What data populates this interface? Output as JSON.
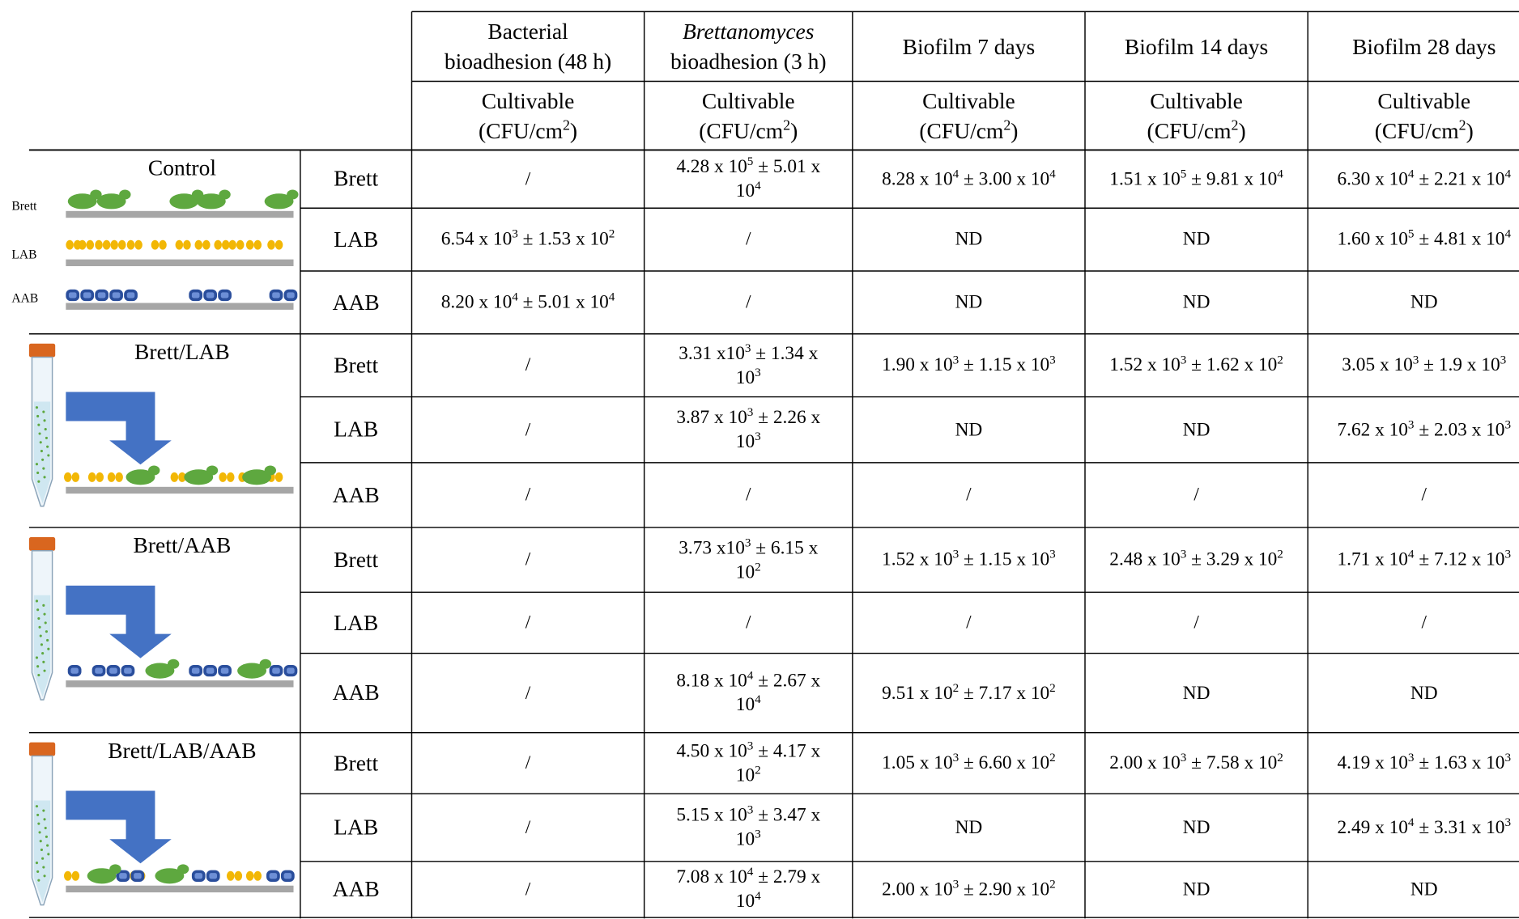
{
  "header": {
    "columns": [
      {
        "lines": [
          [
            "Bacterial"
          ],
          [
            "bioadhesion (48 h)"
          ]
        ]
      },
      {
        "lines": [
          [
            {
              "i": "Brettanomyces"
            }
          ],
          [
            "bioadhesion (3 h)"
          ]
        ]
      },
      {
        "lines": [
          [
            "Biofilm 7 days"
          ]
        ]
      },
      {
        "lines": [
          [
            "Biofilm 14 days"
          ]
        ]
      },
      {
        "lines": [
          [
            "Biofilm 28 days"
          ]
        ]
      }
    ],
    "sub": [
      {
        "lines": [
          [
            "Cultivable"
          ],
          [
            "(CFU/cm",
            {
              "sup": "2"
            },
            ")"
          ]
        ]
      },
      {
        "lines": [
          [
            "Cultivable"
          ],
          [
            "(CFU/cm",
            {
              "sup": "2"
            },
            ")"
          ]
        ]
      },
      {
        "lines": [
          [
            "Cultivable"
          ],
          [
            "(CFU/cm",
            {
              "sup": "2"
            },
            ")"
          ]
        ]
      },
      {
        "lines": [
          [
            "Cultivable"
          ],
          [
            "(CFU/cm",
            {
              "sup": "2"
            },
            ")"
          ]
        ]
      },
      {
        "lines": [
          [
            "Cultivable"
          ],
          [
            "(CFU/cm",
            {
              "sup": "2"
            },
            ")"
          ]
        ]
      }
    ]
  },
  "groups": [
    {
      "label": "Control",
      "diagram_labels": [
        "Brett",
        "LAB",
        "AAB"
      ],
      "rows": [
        {
          "organism": "Brett",
          "cells": [
            "/",
            [
              "4.28 x 10",
              {
                "sup": "5"
              },
              " ± 5.01 x 10",
              {
                "sup": "4"
              }
            ],
            [
              "8.28 x 10",
              {
                "sup": "4"
              },
              " ± 3.00 x 10",
              {
                "sup": "4"
              }
            ],
            [
              "1.51 x 10",
              {
                "sup": "5"
              },
              " ± 9.81 x 10",
              {
                "sup": "4"
              }
            ],
            [
              "6.30 x 10",
              {
                "sup": "4"
              },
              " ± 2.21 x 10",
              {
                "sup": "4"
              }
            ]
          ]
        },
        {
          "organism": "LAB",
          "cells": [
            [
              "6.54 x 10",
              {
                "sup": "3"
              },
              " ± 1.53 x 10",
              {
                "sup": "2"
              }
            ],
            "/",
            "ND",
            "ND",
            [
              "1.60 x 10",
              {
                "sup": "5"
              },
              " ± 4.81 x 10",
              {
                "sup": "4"
              }
            ]
          ]
        },
        {
          "organism": "AAB",
          "cells": [
            [
              "8.20 x 10",
              {
                "sup": "4"
              },
              " ± 5.01 x 10",
              {
                "sup": "4"
              }
            ],
            "/",
            "ND",
            "ND",
            "ND"
          ]
        }
      ]
    },
    {
      "label": "Brett/LAB",
      "rows": [
        {
          "organism": "Brett",
          "cells": [
            "/",
            [
              "3.31 x10",
              {
                "sup": "3"
              },
              " ± 1.34 x 10",
              {
                "sup": "3"
              }
            ],
            [
              "1.90 x 10",
              {
                "sup": "3"
              },
              " ± 1.15 x 10",
              {
                "sup": "3"
              }
            ],
            [
              "1.52 x 10",
              {
                "sup": "3"
              },
              " ± 1.62 x 10",
              {
                "sup": "2"
              }
            ],
            [
              "3.05 x 10",
              {
                "sup": "3"
              },
              " ± 1.9 x 10",
              {
                "sup": "3"
              }
            ]
          ]
        },
        {
          "organism": "LAB",
          "cells": [
            "/",
            [
              "3.87 x 10",
              {
                "sup": "3"
              },
              " ± 2.26 x 10",
              {
                "sup": "3"
              }
            ],
            "ND",
            "ND",
            [
              "7.62 x 10",
              {
                "sup": "3"
              },
              " ± 2.03 x 10",
              {
                "sup": "3"
              }
            ]
          ]
        },
        {
          "organism": "AAB",
          "cells": [
            "/",
            "/",
            "/",
            "/",
            "/"
          ]
        }
      ]
    },
    {
      "label": "Brett/AAB",
      "rows": [
        {
          "organism": "Brett",
          "cells": [
            "/",
            [
              "3.73 x10",
              {
                "sup": "3"
              },
              " ± 6.15 x 10",
              {
                "sup": "2"
              }
            ],
            [
              "1.52 x 10",
              {
                "sup": "3"
              },
              " ± 1.15 x 10",
              {
                "sup": "3"
              }
            ],
            [
              "2.48 x 10",
              {
                "sup": "3"
              },
              " ± 3.29 x 10",
              {
                "sup": "2"
              }
            ],
            [
              "1.71 x 10",
              {
                "sup": "4"
              },
              " ± 7.12 x 10",
              {
                "sup": "3"
              }
            ]
          ]
        },
        {
          "organism": "LAB",
          "cells": [
            "/",
            "/",
            "/",
            "/",
            "/"
          ]
        },
        {
          "organism": "AAB",
          "cells": [
            "/",
            [
              "8.18 x 10",
              {
                "sup": "4"
              },
              " ± 2.67 x 10",
              {
                "sup": "4"
              }
            ],
            [
              "9.51 x 10",
              {
                "sup": "2"
              },
              " ± 7.17 x 10",
              {
                "sup": "2"
              }
            ],
            "ND",
            "ND"
          ]
        }
      ]
    },
    {
      "label": "Brett/LAB/AAB",
      "rows": [
        {
          "organism": "Brett",
          "cells": [
            "/",
            [
              "4.50 x 10",
              {
                "sup": "3"
              },
              " ± 4.17 x 10",
              {
                "sup": "2"
              }
            ],
            [
              "1.05 x 10",
              {
                "sup": "3"
              },
              " ± 6.60 x 10",
              {
                "sup": "2"
              }
            ],
            [
              "2.00 x 10",
              {
                "sup": "3"
              },
              " ± 7.58 x 10",
              {
                "sup": "2"
              }
            ],
            [
              "4.19 x 10",
              {
                "sup": "3"
              },
              " ± 1.63 x 10",
              {
                "sup": "3"
              }
            ]
          ]
        },
        {
          "organism": "LAB",
          "cells": [
            "/",
            [
              "5.15 x 10",
              {
                "sup": "3"
              },
              " ± 3.47 x 10",
              {
                "sup": "3"
              }
            ],
            "ND",
            "ND",
            [
              "2.49 x 10",
              {
                "sup": "4"
              },
              " ± 3.31 x 10",
              {
                "sup": "3"
              }
            ]
          ]
        },
        {
          "organism": "AAB",
          "cells": [
            "/",
            [
              "7.08 x 10",
              {
                "sup": "4"
              },
              " ± 2.79 x 10",
              {
                "sup": "4"
              }
            ],
            [
              "2.00 x 10",
              {
                "sup": "3"
              },
              " ± 2.90 x 10",
              {
                "sup": "2"
              }
            ],
            "ND",
            "ND"
          ]
        }
      ]
    }
  ]
}
